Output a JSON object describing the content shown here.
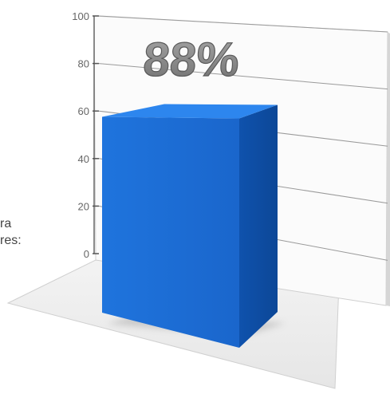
{
  "caption_fragment": {
    "line1": "ra",
    "line2": "res:"
  },
  "chart_data": {
    "type": "bar",
    "style": "3d",
    "categories": [
      ""
    ],
    "values": [
      88
    ],
    "data_label": "88%",
    "ylim": [
      0,
      100
    ],
    "y_ticks": [
      "0",
      "20",
      "40",
      "60",
      "80",
      "100"
    ],
    "grid": true,
    "colors": {
      "bar_front": "#1a6ed8",
      "bar_side": "#0f4ea8",
      "bar_top": "#2d86ee",
      "label": "#8c8c8c",
      "grid": "#9a9a9a"
    }
  }
}
